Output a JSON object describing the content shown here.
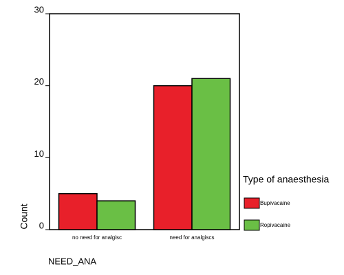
{
  "chart_data": {
    "type": "bar",
    "categories": [
      "no need for analgisc",
      "need for analgiscs"
    ],
    "series": [
      {
        "name": "Bupivacaine",
        "color": "#e8202a",
        "values": [
          5,
          20
        ]
      },
      {
        "name": "Ropivacaine",
        "color": "#6abf45",
        "values": [
          4,
          21
        ]
      }
    ],
    "ylim": [
      0,
      30
    ],
    "yticks": [
      0,
      10,
      20,
      30
    ],
    "y_label": "Count",
    "x_label": "NEED_ANA",
    "legend_title": "Type of anaesthesia",
    "legend": "right"
  }
}
